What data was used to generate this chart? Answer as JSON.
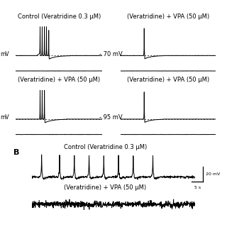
{
  "bg_color": "#ffffff",
  "text_color": "#000000",
  "top_left_label": "Control (Veratridine 0.3 μM)",
  "top_right_label": "(Veratridine) + VPA (50 μM)",
  "mid_left_label": "(Veratridine) + VPA (50 μM)",
  "mid_right_label": "(Veratridine) + VPA (50 μM)",
  "voltage_70": "- 70 mV",
  "voltage_95": "- 95 mV",
  "panel_B_letter": "B",
  "B_control_label": "Control (Veratridine 0.3 μM)",
  "B_vpa_label": "(Veratridine) + VPA (50 μM)",
  "scale_bar_v": "20 mV",
  "scale_bar_t": "5 s",
  "font_size_label": 6.0,
  "font_size_mv": 6.0,
  "line_color": "#000000",
  "line_width": 0.7
}
